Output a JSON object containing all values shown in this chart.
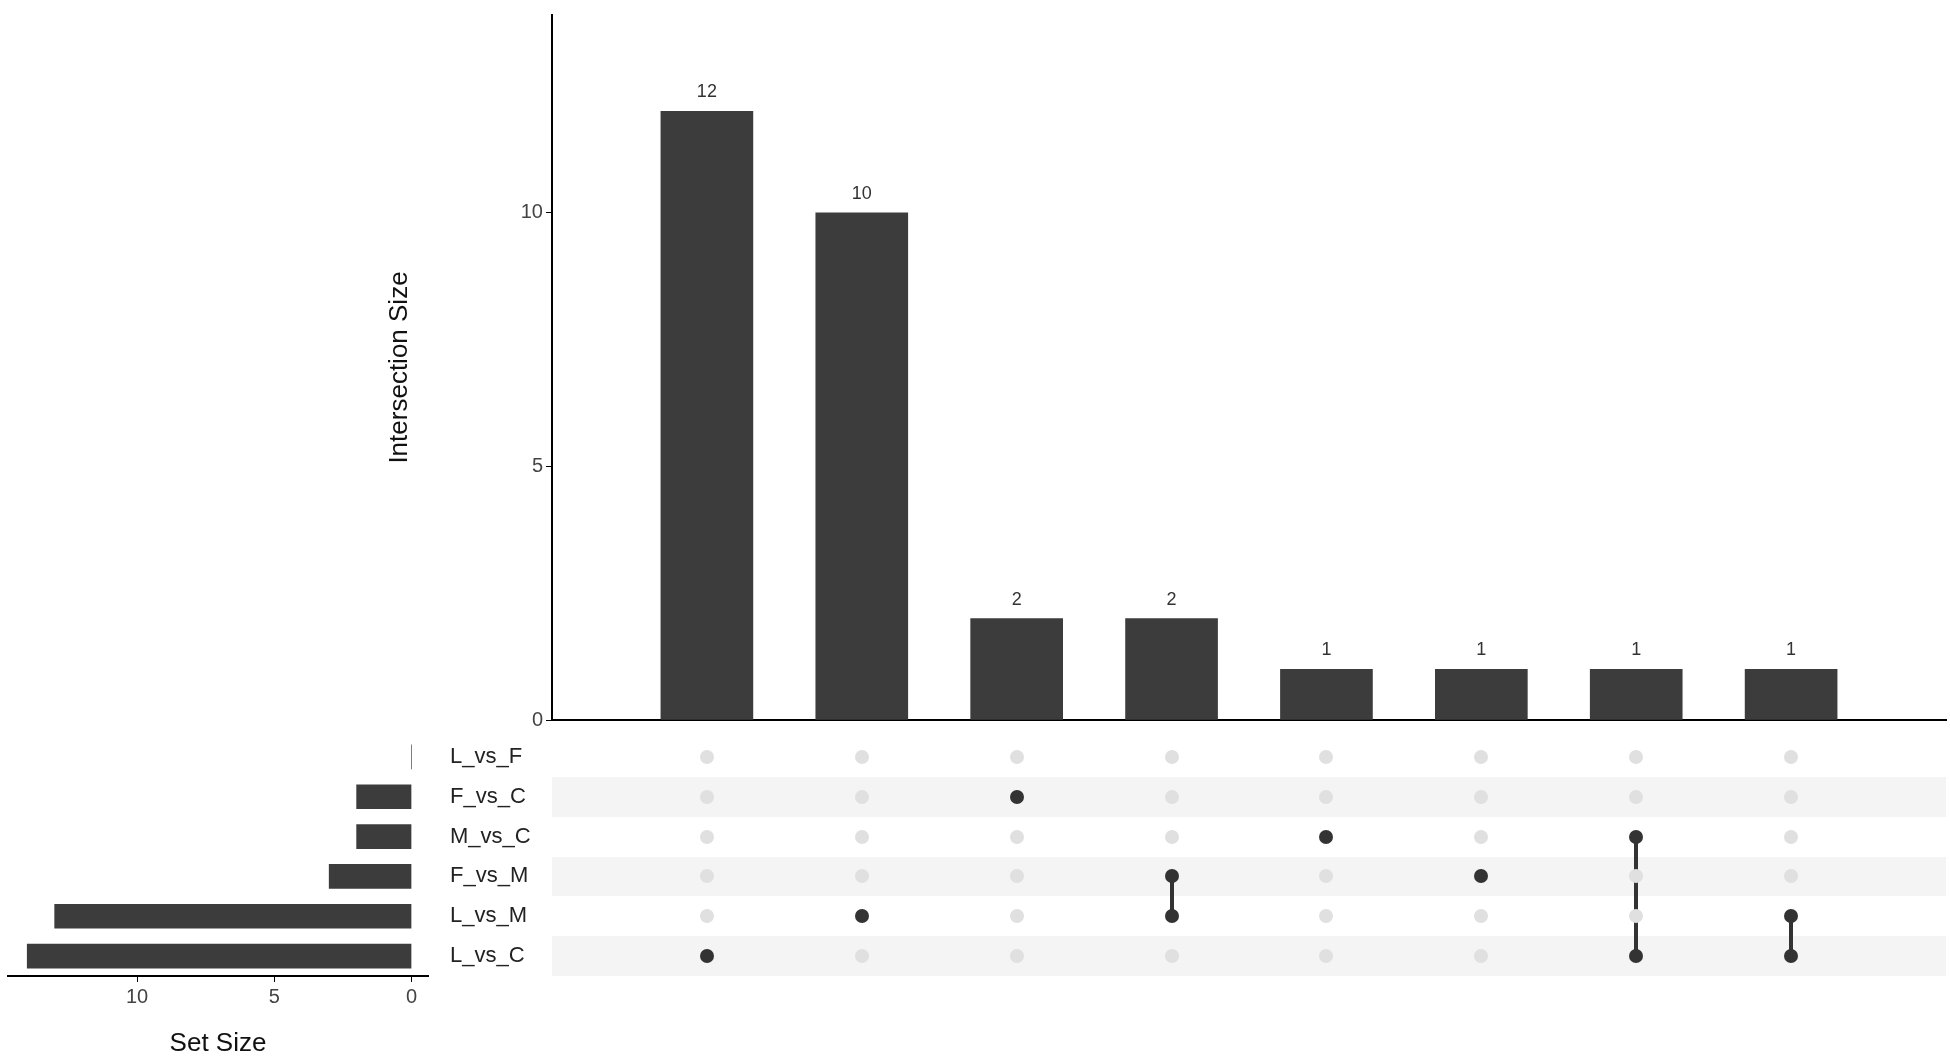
{
  "chart_data": [
    {
      "type": "bar",
      "ylabel": "Intersection Size",
      "categories": [
        null,
        null,
        null,
        null,
        null,
        null,
        null,
        null
      ],
      "values": [
        12,
        10,
        2,
        2,
        1,
        1,
        1,
        1
      ],
      "color": "#3c3c3c",
      "ylim": [
        0,
        13.9
      ],
      "yticks": [
        0,
        5,
        10
      ],
      "data_labels": true,
      "grid": false,
      "legend": false,
      "tick_labels": "y"
    },
    {
      "type": "bar",
      "orientation": "horizontal",
      "xlabel": "Set Size",
      "categories": [
        "L_vs_F",
        "F_vs_C",
        "M_vs_C",
        "F_vs_M",
        "L_vs_M",
        "L_vs_C"
      ],
      "values": [
        0,
        2,
        2,
        3,
        13,
        14
      ],
      "color": "#3c3c3c",
      "xlim": [
        14.7,
        -0.6
      ],
      "xticks": [
        10,
        5,
        0
      ],
      "grid": false,
      "legend": false
    }
  ]
}
